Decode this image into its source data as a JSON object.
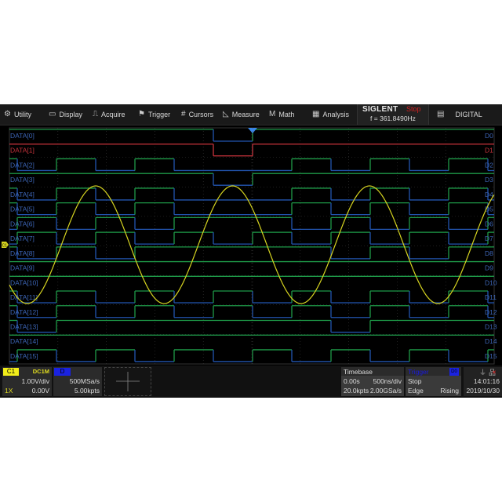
{
  "menu": {
    "items": [
      {
        "label": "Utility",
        "icon": "gear-icon",
        "glyph": "⚙"
      },
      {
        "label": "Display",
        "icon": "monitor-icon",
        "glyph": "▭"
      },
      {
        "label": "Acquire",
        "icon": "acquire-icon",
        "glyph": "⎍"
      },
      {
        "label": "Trigger",
        "icon": "flag-icon",
        "glyph": "⚑"
      },
      {
        "label": "Cursors",
        "icon": "cursors-icon",
        "glyph": "#"
      },
      {
        "label": "Measure",
        "icon": "measure-icon",
        "glyph": "◺"
      },
      {
        "label": "Math",
        "icon": "math-icon",
        "glyph": "M"
      },
      {
        "label": "Analysis",
        "icon": "analysis-icon",
        "glyph": "▦"
      }
    ],
    "brand": "SIGLENT",
    "run_state": "Stop",
    "frequency": "f = 361.8490Hz",
    "digital_label": "DIGITAL",
    "digital_icon": "digital-icon"
  },
  "colors": {
    "high": "#1e9a48",
    "low": "#2255b0",
    "highlight": "#c8333c",
    "label": "#3c64b4",
    "ch1": "#d6d420",
    "trigger_marker": "#3a86e8",
    "grid": "#3a3a3a"
  },
  "digital": {
    "selected_channel": 1,
    "channels": [
      {
        "name": "DATA[0]",
        "short": "D0",
        "bits": [
          1,
          1,
          1,
          1,
          1,
          1,
          0,
          1,
          1,
          1,
          1,
          1,
          1,
          1
        ]
      },
      {
        "name": "DATA[1]",
        "short": "D1",
        "bits": [
          1,
          1,
          1,
          1,
          1,
          1,
          0,
          1,
          1,
          1,
          1,
          1,
          1,
          1
        ]
      },
      {
        "name": "DATA[2]",
        "short": "D2",
        "bits": [
          1,
          0,
          1,
          0,
          1,
          0,
          0,
          0,
          1,
          0,
          1,
          0,
          1,
          0
        ]
      },
      {
        "name": "DATA[3]",
        "short": "D3",
        "bits": [
          1,
          1,
          1,
          1,
          1,
          1,
          0,
          1,
          1,
          1,
          1,
          1,
          1,
          1
        ]
      },
      {
        "name": "DATA[4]",
        "short": "D4",
        "bits": [
          1,
          0,
          1,
          0,
          1,
          0,
          0,
          0,
          1,
          0,
          1,
          0,
          1,
          0
        ]
      },
      {
        "name": "DATA[5]",
        "short": "D5",
        "bits": [
          1,
          0,
          1,
          0,
          1,
          0,
          0,
          0,
          1,
          0,
          1,
          0,
          1,
          0
        ]
      },
      {
        "name": "DATA[6]",
        "short": "D6",
        "bits": [
          0,
          1,
          0,
          1,
          0,
          1,
          1,
          1,
          0,
          1,
          0,
          1,
          0,
          1
        ]
      },
      {
        "name": "DATA[7]",
        "short": "D7",
        "bits": [
          0,
          1,
          0,
          1,
          0,
          1,
          0,
          1,
          0,
          1,
          0,
          1,
          0,
          1
        ]
      },
      {
        "name": "DATA[8]",
        "short": "D8",
        "bits": [
          1,
          0,
          1,
          0,
          1,
          1,
          1,
          1,
          1,
          0,
          1,
          0,
          1,
          1
        ]
      },
      {
        "name": "DATA[9]",
        "short": "D9",
        "bits": [
          1,
          1,
          1,
          1,
          1,
          1,
          1,
          1,
          1,
          1,
          1,
          1,
          1,
          1
        ]
      },
      {
        "name": "DATA[10]",
        "short": "D10",
        "bits": [
          1,
          1,
          1,
          1,
          1,
          1,
          1,
          1,
          1,
          1,
          1,
          1,
          1,
          1
        ]
      },
      {
        "name": "DATA[11]",
        "short": "D11",
        "bits": [
          1,
          0,
          1,
          0,
          1,
          0,
          1,
          0,
          1,
          0,
          1,
          0,
          1,
          0
        ]
      },
      {
        "name": "DATA[12]",
        "short": "D12",
        "bits": [
          1,
          0,
          1,
          0,
          1,
          0,
          1,
          0,
          1,
          0,
          1,
          0,
          1,
          0
        ]
      },
      {
        "name": "DATA[13]",
        "short": "D13",
        "bits": [
          1,
          0,
          1,
          1,
          1,
          1,
          1,
          1,
          1,
          0,
          1,
          1,
          1,
          1
        ]
      },
      {
        "name": "DATA[14]",
        "short": "D14",
        "bits": [
          1,
          1,
          1,
          1,
          1,
          1,
          1,
          1,
          1,
          1,
          1,
          1,
          1,
          1
        ]
      },
      {
        "name": "DATA[15]",
        "short": "D15",
        "bits": [
          0,
          1,
          0,
          1,
          0,
          1,
          0,
          1,
          0,
          1,
          0,
          1,
          0,
          1
        ]
      }
    ]
  },
  "ch1_marker": "C1",
  "ch1": {
    "tag": "C1",
    "coupling": "DC1M",
    "scale": "1.00V/div",
    "probe": "1X",
    "offset": "0.00V"
  },
  "dch": {
    "tag": "D",
    "sample_rate": "500MSa/s",
    "points": "5.00kpts"
  },
  "timebase": {
    "title": "Timebase",
    "delay": "0.00s",
    "scale": "500ns/div",
    "points": "20.0kpts",
    "sample_rate": "2.00GSa/s"
  },
  "trigger": {
    "title": "Trigger",
    "source": "D0",
    "state": "Stop",
    "type": "Edge",
    "slope": "Rising"
  },
  "status": {
    "usb_icon": "usb-icon",
    "network_icon": "network-disconnected-icon",
    "time": "14:01:16",
    "date": "2019/10/30"
  }
}
